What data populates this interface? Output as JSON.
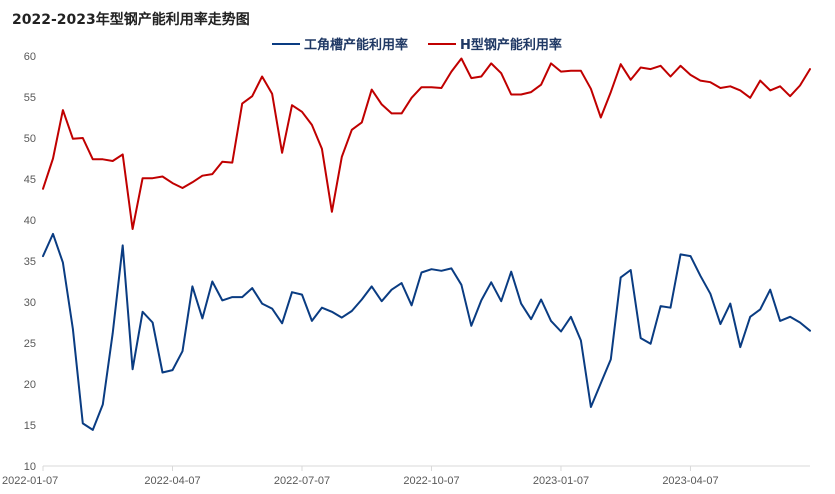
{
  "chart_data": {
    "type": "line",
    "title": "2022-2023年型钢产能利用率走势图",
    "xlabel": "",
    "ylabel": "",
    "ylim": [
      10,
      60
    ],
    "yticks": [
      10,
      15,
      20,
      25,
      30,
      35,
      40,
      45,
      50,
      55,
      60
    ],
    "x_tick_labels": [
      "2022-01-07",
      "2022-04-07",
      "2022-07-07",
      "2022-10-07",
      "2023-01-07",
      "2023-04-07"
    ],
    "x_tick_index": [
      0,
      13,
      26,
      39,
      52,
      65
    ],
    "grid": false,
    "legend_position": "top-center",
    "series": [
      {
        "name": "工角槽产能利用率",
        "color": "#0a3c82",
        "values": [
          35.6,
          38.3,
          34.8,
          26.7,
          15.2,
          14.4,
          17.5,
          26.2,
          36.9,
          21.8,
          28.8,
          27.5,
          21.4,
          21.7,
          24.0,
          31.9,
          28.0,
          32.5,
          30.2,
          30.6,
          30.6,
          31.7,
          29.8,
          29.2,
          27.4,
          31.2,
          30.9,
          27.7,
          29.3,
          28.8,
          28.1,
          28.9,
          30.3,
          31.9,
          30.1,
          31.5,
          32.3,
          29.6,
          33.6,
          34.0,
          33.8,
          34.1,
          32.1,
          27.1,
          30.2,
          32.4,
          30.1,
          33.7,
          29.8,
          27.9,
          30.3,
          27.7,
          26.4,
          28.2,
          25.3,
          17.2,
          20.1,
          23.0,
          33.0,
          33.9,
          25.6,
          24.9,
          29.5,
          29.3,
          35.8,
          35.6,
          33.2,
          31.0,
          27.3,
          29.8,
          24.5,
          28.2,
          29.1,
          31.5,
          27.7,
          28.2,
          27.5,
          26.5
        ]
      },
      {
        "name": "H型钢产能利用率",
        "color": "#c00000",
        "values": [
          43.8,
          47.5,
          53.4,
          49.9,
          50.0,
          47.4,
          47.4,
          47.2,
          48.0,
          38.9,
          45.1,
          45.1,
          45.3,
          44.5,
          43.9,
          44.6,
          45.4,
          45.6,
          47.1,
          47.0,
          54.2,
          55.1,
          57.5,
          55.4,
          48.2,
          54.0,
          53.2,
          51.6,
          48.7,
          41.0,
          47.7,
          51.0,
          51.9,
          55.9,
          54.1,
          53.0,
          53.0,
          54.9,
          56.2,
          56.2,
          56.1,
          58.1,
          59.7,
          57.3,
          57.5,
          59.1,
          57.9,
          55.3,
          55.3,
          55.6,
          56.5,
          59.1,
          58.1,
          58.2,
          58.2,
          56.0,
          52.5,
          55.6,
          59.0,
          57.1,
          58.6,
          58.4,
          58.8,
          57.5,
          58.8,
          57.7,
          57.0,
          56.8,
          56.1,
          56.3,
          55.8,
          54.9,
          57.0,
          55.8,
          56.3,
          55.1,
          56.4,
          58.4
        ]
      }
    ]
  }
}
